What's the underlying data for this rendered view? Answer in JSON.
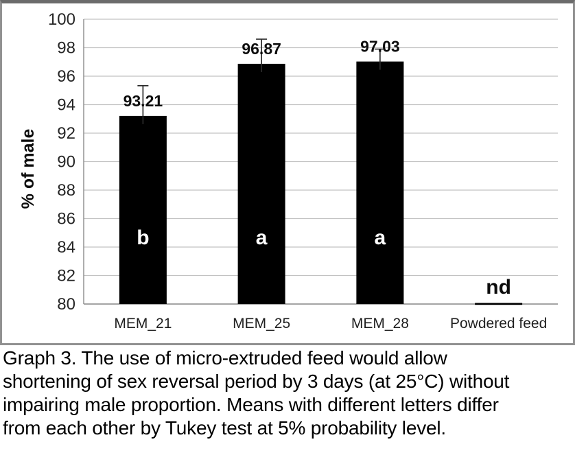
{
  "chart_data": {
    "type": "bar",
    "title": "",
    "xlabel": "",
    "ylabel": "% of male",
    "ylim": [
      80,
      100
    ],
    "ytick_step": 2,
    "grid": true,
    "legend": false,
    "bar_color": "#000000",
    "gridline_color": "#c2c2c2",
    "axis_color": "#8a8a8a",
    "error_bar_color": "#2b2b2b",
    "letter_color_inside_bar": "#ffffff",
    "categories": [
      "MEM_21",
      "MEM_25",
      "MEM_28",
      "Powdered feed"
    ],
    "bars": [
      {
        "category": "MEM_21",
        "value": 93.21,
        "value_label": "93.21",
        "letter": "b",
        "error_top": 95.33,
        "annotation": null
      },
      {
        "category": "MEM_25",
        "value": 96.87,
        "value_label": "96.87",
        "letter": "a",
        "error_top": 98.6,
        "annotation": null
      },
      {
        "category": "MEM_28",
        "value": 97.03,
        "value_label": "97.03",
        "letter": "a",
        "error_top": 97.9,
        "annotation": null
      },
      {
        "category": "Powdered feed",
        "value": null,
        "value_label": "",
        "letter": null,
        "error_top": null,
        "annotation": "nd"
      }
    ]
  },
  "caption": {
    "lines": [
      "Graph 3. The use of micro-extruded feed would allow",
      "shortening of sex reversal period by 3 days (at 25°C) without",
      "impairing male proportion. Means with different letters differ",
      "from each other by Tukey test at 5% probability level."
    ]
  }
}
